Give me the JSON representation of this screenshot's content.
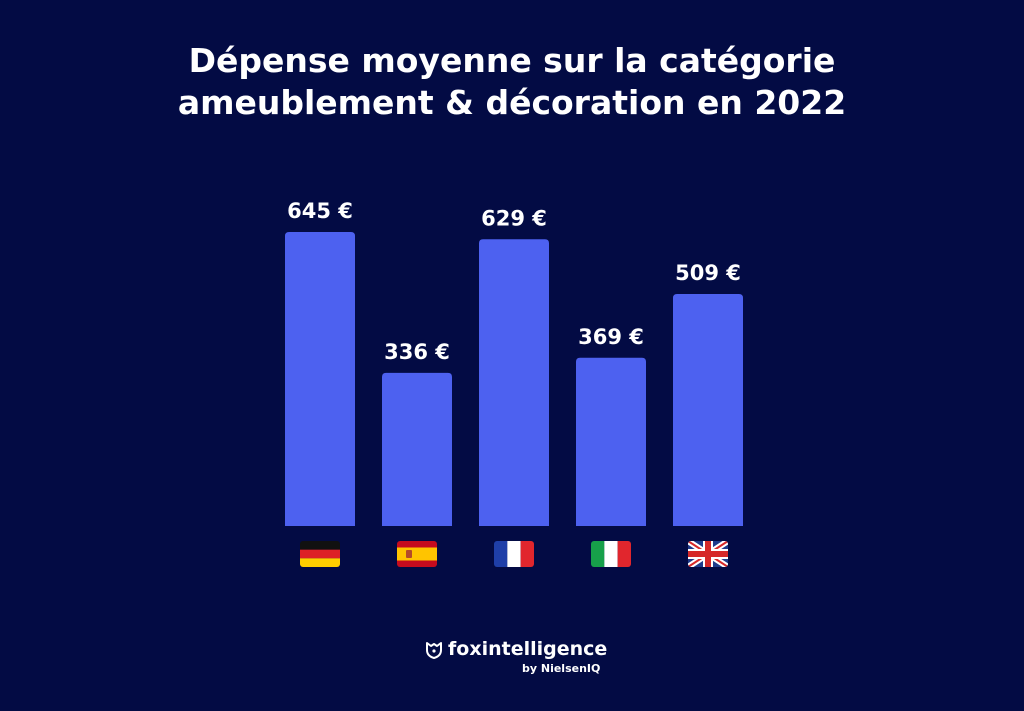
{
  "chart_data": {
    "type": "bar",
    "title": "Dépense moyenne sur la catégorie ameublement & décoration en 2022",
    "title_line1": "Dépense moyenne sur la catégorie",
    "title_line2": "ameublement & décoration en 2022",
    "categories": [
      "Allemagne",
      "Espagne",
      "France",
      "Italie",
      "Royaume-Uni"
    ],
    "category_icons": [
      "flag-germany-icon",
      "flag-spain-icon",
      "flag-france-icon",
      "flag-italy-icon",
      "flag-uk-icon"
    ],
    "values": [
      645,
      336,
      629,
      369,
      509
    ],
    "data_labels": [
      "645 €",
      "336 €",
      "629 €",
      "369 €",
      "509 €"
    ],
    "unit": "€",
    "ylim": [
      0,
      645
    ],
    "grid": false,
    "bar_color": "#4d61f0"
  },
  "background_color": "#030b44",
  "brand": {
    "name": "foxintelligence",
    "tagline": "by NielsenIQ",
    "icon": "fox-shield-icon"
  }
}
